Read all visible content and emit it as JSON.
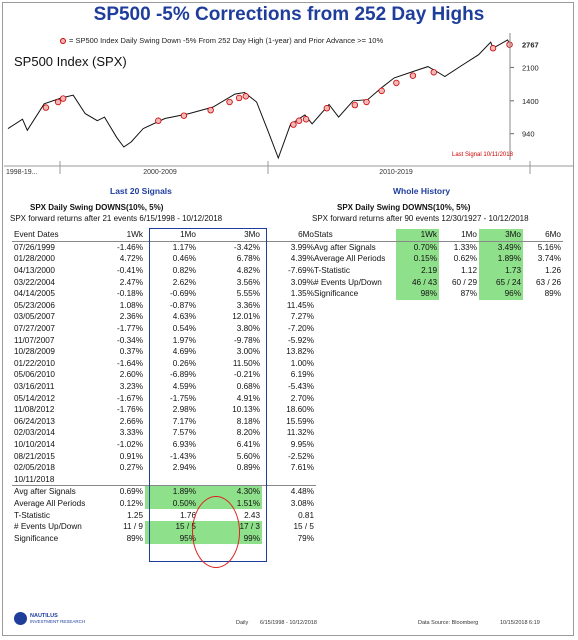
{
  "title": "SP500 -5% Corrections from 252 Day Highs",
  "legend_text": "= SP500 Index Daily Swing Down -5% From 252 Day High (1-year) and Prior Advance >= 10%",
  "index_label": "SP500 Index (SPX)",
  "last_signal": "Last Signal 10/11/2018",
  "colors": {
    "title": "#1f3e9c",
    "line": "#111111",
    "marker_edge": "#cc0000",
    "marker_fill": "#f2b8b8",
    "highlight": "#8fe08a",
    "oval": "#dd2222"
  },
  "chart_data": {
    "type": "line",
    "title": "SP500 -5% Corrections from 252 Day Highs",
    "y_scale": "log",
    "ylim": [
      700,
      3000
    ],
    "y_ticks": [
      940,
      1400,
      2100
    ],
    "last_value_label": "2767",
    "x_ticks": [
      "1998-19...",
      "2000-2009",
      "2010-2019"
    ],
    "series": [
      {
        "name": "SP500 Index (SPX)",
        "x": [
          1998.0,
          1998.6,
          1998.8,
          1999.5,
          2000.2,
          2000.7,
          2001.2,
          2001.7,
          2002.0,
          2002.5,
          2002.8,
          2003.1,
          2003.6,
          2004.5,
          2005.5,
          2006.5,
          2007.4,
          2007.8,
          2008.3,
          2008.8,
          2009.2,
          2009.7,
          2010.3,
          2010.6,
          2011.3,
          2011.7,
          2012.3,
          2012.9,
          2013.5,
          2014.0,
          2014.8,
          2015.4,
          2015.9,
          2016.1,
          2016.8,
          2017.5,
          2018.0,
          2018.1,
          2018.7,
          2018.8
        ],
        "y": [
          1000,
          1120,
          980,
          1350,
          1450,
          1500,
          1200,
          1100,
          1150,
          900,
          800,
          850,
          1000,
          1130,
          1200,
          1300,
          1520,
          1550,
          1380,
          950,
          700,
          1050,
          1180,
          1060,
          1340,
          1150,
          1400,
          1420,
          1650,
          1850,
          2000,
          2120,
          1950,
          1880,
          2150,
          2450,
          2850,
          2650,
          2930,
          2767
        ]
      }
    ],
    "signals": [
      {
        "date": "07/26/1999",
        "y": 1290
      },
      {
        "date": "01/28/2000",
        "y": 1380
      },
      {
        "date": "04/13/2000",
        "y": 1440
      },
      {
        "date": "03/22/2004",
        "y": 1100
      },
      {
        "date": "04/14/2005",
        "y": 1170
      },
      {
        "date": "05/23/2006",
        "y": 1250
      },
      {
        "date": "03/05/2007",
        "y": 1380
      },
      {
        "date": "07/27/2007",
        "y": 1450
      },
      {
        "date": "11/07/2007",
        "y": 1480
      },
      {
        "date": "10/28/2009",
        "y": 1050
      },
      {
        "date": "01/22/2010",
        "y": 1100
      },
      {
        "date": "05/06/2010",
        "y": 1120
      },
      {
        "date": "03/16/2011",
        "y": 1280
      },
      {
        "date": "05/14/2012",
        "y": 1330
      },
      {
        "date": "11/08/2012",
        "y": 1380
      },
      {
        "date": "06/24/2013",
        "y": 1580
      },
      {
        "date": "02/03/2014",
        "y": 1740
      },
      {
        "date": "10/10/2014",
        "y": 1900
      },
      {
        "date": "08/21/2015",
        "y": 1980
      },
      {
        "date": "02/05/2018",
        "y": 2650
      },
      {
        "date": "10/11/2018",
        "y": 2767
      }
    ]
  },
  "left": {
    "section_title": "Last 20 Signals",
    "subtitle": "SPX Daily Swing DOWNS(10%, 5%)",
    "subtitle2": "SPX forward returns after 21 events 6/15/1998 - 10/12/2018",
    "headers": [
      "Event Dates",
      "1Wk",
      "1Mo",
      "3Mo",
      "6Mo"
    ],
    "rows": [
      [
        "07/26/1999",
        "-1.46%",
        "1.17%",
        "-3.42%",
        "3.99%"
      ],
      [
        "01/28/2000",
        "4.72%",
        "0.46%",
        "6.78%",
        "4.39%"
      ],
      [
        "04/13/2000",
        "-0.41%",
        "0.82%",
        "4.82%",
        "-7.69%"
      ],
      [
        "03/22/2004",
        "2.47%",
        "2.62%",
        "3.56%",
        "3.09%"
      ],
      [
        "04/14/2005",
        "-0.18%",
        "-0.69%",
        "5.55%",
        "1.35%"
      ],
      [
        "05/23/2006",
        "1.08%",
        "-0.87%",
        "3.36%",
        "11.45%"
      ],
      [
        "03/05/2007",
        "2.36%",
        "4.63%",
        "12.01%",
        "7.27%"
      ],
      [
        "07/27/2007",
        "-1.77%",
        "0.54%",
        "3.80%",
        "-7.20%"
      ],
      [
        "11/07/2007",
        "-0.34%",
        "1.97%",
        "-9.78%",
        "-5.92%"
      ],
      [
        "10/28/2009",
        "0.37%",
        "4.69%",
        "3.00%",
        "13.82%"
      ],
      [
        "01/22/2010",
        "-1.64%",
        "0.26%",
        "11.50%",
        "1.00%"
      ],
      [
        "05/06/2010",
        "2.60%",
        "-6.89%",
        "-0.21%",
        "6.19%"
      ],
      [
        "03/16/2011",
        "3.23%",
        "4.59%",
        "0.68%",
        "-5.43%"
      ],
      [
        "05/14/2012",
        "-1.67%",
        "-1.75%",
        "4.91%",
        "2.70%"
      ],
      [
        "11/08/2012",
        "-1.76%",
        "2.98%",
        "10.13%",
        "18.60%"
      ],
      [
        "06/24/2013",
        "2.66%",
        "7.17%",
        "8.18%",
        "15.59%"
      ],
      [
        "02/03/2014",
        "3.33%",
        "7.57%",
        "8.20%",
        "11.32%"
      ],
      [
        "10/10/2014",
        "-1.02%",
        "6.93%",
        "6.41%",
        "9.95%"
      ],
      [
        "08/21/2015",
        "0.91%",
        "-1.43%",
        "5.60%",
        "-2.52%"
      ],
      [
        "02/05/2018",
        "0.27%",
        "2.94%",
        "0.89%",
        "7.61%"
      ],
      [
        "10/11/2018",
        "",
        "",
        "",
        ""
      ]
    ],
    "stats": [
      [
        "Avg after Signals",
        "0.69%",
        "1.89%",
        "4.30%",
        "4.48%"
      ],
      [
        "Average All Periods",
        "0.12%",
        "0.50%",
        "1.51%",
        "3.08%"
      ],
      [
        "T-Statistic",
        "1.25",
        "1.76",
        "2.43",
        "0.81"
      ],
      [
        "# Events Up/Down",
        "11 / 9",
        "15 / 5",
        "17 / 3",
        "15 / 5"
      ],
      [
        "Significance",
        "89%",
        "95%",
        "99%",
        "79%"
      ]
    ]
  },
  "right": {
    "section_title": "Whole History",
    "subtitle": "SPX Daily Swing DOWNS(10%, 5%)",
    "subtitle2": "SPX forward returns after 90 events 12/30/1927 - 10/12/2018",
    "headers": [
      "Stats",
      "1Wk",
      "1Mo",
      "3Mo",
      "6Mo"
    ],
    "rows": [
      [
        "Avg after Signals",
        "0.70%",
        "1.33%",
        "3.49%",
        "5.16%"
      ],
      [
        "Average All Periods",
        "0.15%",
        "0.62%",
        "1.89%",
        "3.74%"
      ],
      [
        "T-Statistic",
        "2.19",
        "1.12",
        "1.73",
        "1.26"
      ],
      [
        "# Events Up/Down",
        "46 / 43",
        "60 / 29",
        "65 / 24",
        "63 / 26"
      ],
      [
        "Significance",
        "98%",
        "87%",
        "96%",
        "89%"
      ]
    ]
  },
  "footer": {
    "logo_name": "NAUTILUS",
    "logo_sub": "INVESTMENT RESEARCH",
    "freq": "Daily",
    "range": "6/15/1998 - 10/12/2018",
    "source": "Data Source: Bloomberg",
    "stamp": "10/15/2018 6:19"
  }
}
